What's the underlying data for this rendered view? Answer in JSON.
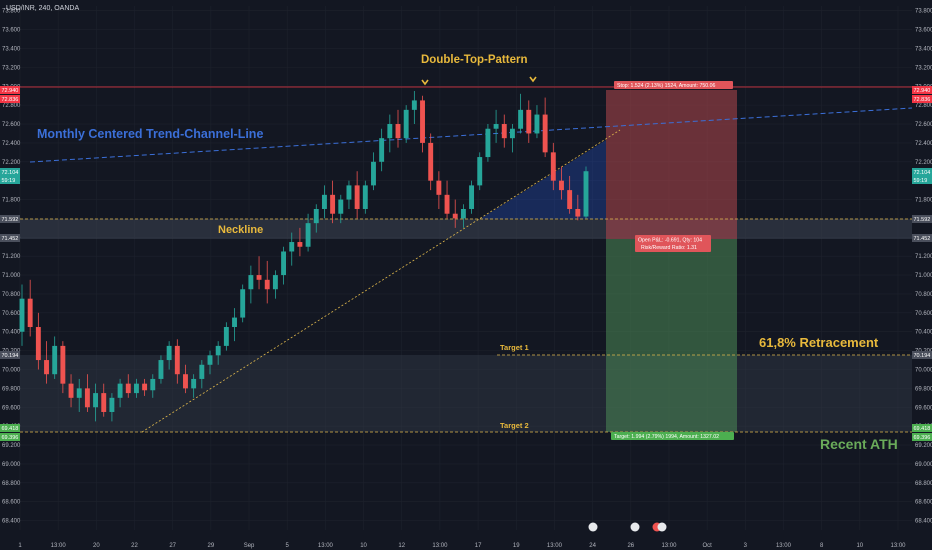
{
  "header": {
    "symbol": "USD/INR, 240, OANDA"
  },
  "chart_data": {
    "type": "candlestick",
    "title": "USD/INR, 240, OANDA",
    "ylim": [
      68.3,
      73.85
    ],
    "y_ticks": [
      "73.800",
      "73.600",
      "73.400",
      "73.200",
      "73.000",
      "72.800",
      "72.600",
      "72.400",
      "72.200",
      "72.000",
      "71.800",
      "71.600",
      "71.400",
      "71.200",
      "71.000",
      "70.800",
      "70.600",
      "70.400",
      "70.200",
      "70.000",
      "69.800",
      "69.600",
      "69.400",
      "69.200",
      "69.000",
      "68.800",
      "68.600",
      "68.400"
    ],
    "x_ticks": [
      "1",
      "13:00",
      "20",
      "22",
      "27",
      "29",
      "Sep",
      "5",
      "13:00",
      "10",
      "12",
      "13:00",
      "17",
      "19",
      "13:00",
      "24",
      "26",
      "13:00",
      "Oct",
      "3",
      "13:00",
      "8",
      "10",
      "13:00"
    ],
    "colors": {
      "up": "#26a69a",
      "down": "#ef5350",
      "background": "#131722",
      "grid": "#1e222d"
    },
    "price_tags": {
      "left": [
        {
          "label": "72.940",
          "color": "#f23645"
        },
        {
          "label": "72.836",
          "color": "#f23645"
        },
        {
          "label": "72.104",
          "color": "#26a69a"
        },
        {
          "label": "59:19",
          "color": "#26a69a"
        },
        {
          "label": "71.592",
          "color": "#4a4f5c"
        },
        {
          "label": "71.452",
          "color": "#4a4f5c"
        },
        {
          "label": "70.194",
          "color": "#4a4f5c"
        },
        {
          "label": "69.418",
          "color": "#4caf50"
        },
        {
          "label": "69.396",
          "color": "#4caf50"
        }
      ],
      "right": [
        {
          "label": "72.940",
          "color": "#f23645"
        },
        {
          "label": "72.836",
          "color": "#f23645"
        },
        {
          "label": "72.104",
          "color": "#26a69a"
        },
        {
          "label": "59:19",
          "color": "#26a69a"
        },
        {
          "label": "71.592",
          "color": "#4a4f5c"
        },
        {
          "label": "71.452",
          "color": "#4a4f5c"
        },
        {
          "label": "70.194",
          "color": "#4a4f5c"
        },
        {
          "label": "69.418",
          "color": "#4caf50"
        },
        {
          "label": "69.396",
          "color": "#4caf50"
        }
      ]
    },
    "annotations": {
      "pattern": "Double-Top-Pattern",
      "trend_channel": "Monthly Centered Trend-Channel-Line",
      "neckline": "Neckline",
      "target1": "Target 1",
      "target2": "Target 2",
      "retracement": "61,8% Retracement",
      "ath": "Recent ATH"
    },
    "position": {
      "stop_label": "Stop: 1.524 (2.13%) 1524, Amount: 750.06",
      "pnl_label": "Open P&L: -0.691, Qty: 104",
      "rr_label": "Risk/Reward Ratio: 1.31",
      "target_label": "Target: 1.994 (2.79%) 1994, Amount: 1327.02"
    },
    "candles": [
      {
        "o": 70.4,
        "h": 70.9,
        "l": 70.25,
        "c": 70.75
      },
      {
        "o": 70.75,
        "h": 70.95,
        "l": 70.35,
        "c": 70.45
      },
      {
        "o": 70.45,
        "h": 70.6,
        "l": 70.0,
        "c": 70.1
      },
      {
        "o": 70.1,
        "h": 70.3,
        "l": 69.85,
        "c": 69.95
      },
      {
        "o": 69.95,
        "h": 70.35,
        "l": 69.9,
        "c": 70.25
      },
      {
        "o": 70.25,
        "h": 70.3,
        "l": 69.75,
        "c": 69.85
      },
      {
        "o": 69.85,
        "h": 69.95,
        "l": 69.6,
        "c": 69.7
      },
      {
        "o": 69.7,
        "h": 69.9,
        "l": 69.55,
        "c": 69.8
      },
      {
        "o": 69.8,
        "h": 69.95,
        "l": 69.55,
        "c": 69.6
      },
      {
        "o": 69.6,
        "h": 69.85,
        "l": 69.45,
        "c": 69.75
      },
      {
        "o": 69.75,
        "h": 69.85,
        "l": 69.5,
        "c": 69.55
      },
      {
        "o": 69.55,
        "h": 69.75,
        "l": 69.45,
        "c": 69.7
      },
      {
        "o": 69.7,
        "h": 69.9,
        "l": 69.6,
        "c": 69.85
      },
      {
        "o": 69.85,
        "h": 69.95,
        "l": 69.7,
        "c": 69.75
      },
      {
        "o": 69.75,
        "h": 69.9,
        "l": 69.7,
        "c": 69.85
      },
      {
        "o": 69.85,
        "h": 69.9,
        "l": 69.72,
        "c": 69.78
      },
      {
        "o": 69.78,
        "h": 69.95,
        "l": 69.7,
        "c": 69.9
      },
      {
        "o": 69.9,
        "h": 70.15,
        "l": 69.85,
        "c": 70.1
      },
      {
        "o": 70.1,
        "h": 70.3,
        "l": 70.0,
        "c": 70.25
      },
      {
        "o": 70.25,
        "h": 70.32,
        "l": 69.85,
        "c": 69.95
      },
      {
        "o": 69.95,
        "h": 70.05,
        "l": 69.75,
        "c": 69.8
      },
      {
        "o": 69.8,
        "h": 69.95,
        "l": 69.7,
        "c": 69.9
      },
      {
        "o": 69.9,
        "h": 70.1,
        "l": 69.8,
        "c": 70.05
      },
      {
        "o": 70.05,
        "h": 70.2,
        "l": 69.95,
        "c": 70.15
      },
      {
        "o": 70.15,
        "h": 70.3,
        "l": 70.05,
        "c": 70.25
      },
      {
        "o": 70.25,
        "h": 70.5,
        "l": 70.2,
        "c": 70.45
      },
      {
        "o": 70.45,
        "h": 70.65,
        "l": 70.3,
        "c": 70.55
      },
      {
        "o": 70.55,
        "h": 70.9,
        "l": 70.5,
        "c": 70.85
      },
      {
        "o": 70.85,
        "h": 71.1,
        "l": 70.7,
        "c": 71.0
      },
      {
        "o": 71.0,
        "h": 71.2,
        "l": 70.85,
        "c": 70.95
      },
      {
        "o": 70.95,
        "h": 71.15,
        "l": 70.7,
        "c": 70.85
      },
      {
        "o": 70.85,
        "h": 71.05,
        "l": 70.75,
        "c": 71.0
      },
      {
        "o": 71.0,
        "h": 71.3,
        "l": 70.9,
        "c": 71.25
      },
      {
        "o": 71.25,
        "h": 71.45,
        "l": 71.1,
        "c": 71.35
      },
      {
        "o": 71.35,
        "h": 71.5,
        "l": 71.2,
        "c": 71.3
      },
      {
        "o": 71.3,
        "h": 71.65,
        "l": 71.25,
        "c": 71.55
      },
      {
        "o": 71.55,
        "h": 71.75,
        "l": 71.45,
        "c": 71.7
      },
      {
        "o": 71.7,
        "h": 71.95,
        "l": 71.6,
        "c": 71.85
      },
      {
        "o": 71.85,
        "h": 72.0,
        "l": 71.55,
        "c": 71.65
      },
      {
        "o": 71.65,
        "h": 71.85,
        "l": 71.55,
        "c": 71.8
      },
      {
        "o": 71.8,
        "h": 72.0,
        "l": 71.7,
        "c": 71.95
      },
      {
        "o": 71.95,
        "h": 72.1,
        "l": 71.6,
        "c": 71.7
      },
      {
        "o": 71.7,
        "h": 72.0,
        "l": 71.65,
        "c": 71.95
      },
      {
        "o": 71.95,
        "h": 72.3,
        "l": 71.9,
        "c": 72.2
      },
      {
        "o": 72.2,
        "h": 72.55,
        "l": 72.1,
        "c": 72.45
      },
      {
        "o": 72.45,
        "h": 72.7,
        "l": 72.3,
        "c": 72.6
      },
      {
        "o": 72.6,
        "h": 72.75,
        "l": 72.35,
        "c": 72.45
      },
      {
        "o": 72.45,
        "h": 72.8,
        "l": 72.4,
        "c": 72.75
      },
      {
        "o": 72.75,
        "h": 72.95,
        "l": 72.6,
        "c": 72.85
      },
      {
        "o": 72.85,
        "h": 72.9,
        "l": 72.3,
        "c": 72.4
      },
      {
        "o": 72.4,
        "h": 72.5,
        "l": 71.9,
        "c": 72.0
      },
      {
        "o": 72.0,
        "h": 72.1,
        "l": 71.7,
        "c": 71.85
      },
      {
        "o": 71.85,
        "h": 72.0,
        "l": 71.6,
        "c": 71.65
      },
      {
        "o": 71.65,
        "h": 71.8,
        "l": 71.5,
        "c": 71.6
      },
      {
        "o": 71.6,
        "h": 71.75,
        "l": 71.5,
        "c": 71.7
      },
      {
        "o": 71.7,
        "h": 72.0,
        "l": 71.65,
        "c": 71.95
      },
      {
        "o": 71.95,
        "h": 72.3,
        "l": 71.9,
        "c": 72.25
      },
      {
        "o": 72.25,
        "h": 72.6,
        "l": 72.2,
        "c": 72.55
      },
      {
        "o": 72.55,
        "h": 72.75,
        "l": 72.4,
        "c": 72.6
      },
      {
        "o": 72.6,
        "h": 72.7,
        "l": 72.35,
        "c": 72.45
      },
      {
        "o": 72.45,
        "h": 72.6,
        "l": 72.3,
        "c": 72.55
      },
      {
        "o": 72.55,
        "h": 72.92,
        "l": 72.5,
        "c": 72.75
      },
      {
        "o": 72.75,
        "h": 72.85,
        "l": 72.4,
        "c": 72.5
      },
      {
        "o": 72.5,
        "h": 72.8,
        "l": 72.45,
        "c": 72.7
      },
      {
        "o": 72.7,
        "h": 72.88,
        "l": 72.25,
        "c": 72.3
      },
      {
        "o": 72.3,
        "h": 72.4,
        "l": 71.9,
        "c": 72.0
      },
      {
        "o": 72.0,
        "h": 72.15,
        "l": 71.8,
        "c": 71.9
      },
      {
        "o": 71.9,
        "h": 72.05,
        "l": 71.65,
        "c": 71.7
      },
      {
        "o": 71.7,
        "h": 71.85,
        "l": 71.58,
        "c": 71.62
      },
      {
        "o": 71.62,
        "h": 72.15,
        "l": 71.6,
        "c": 72.1
      }
    ]
  }
}
